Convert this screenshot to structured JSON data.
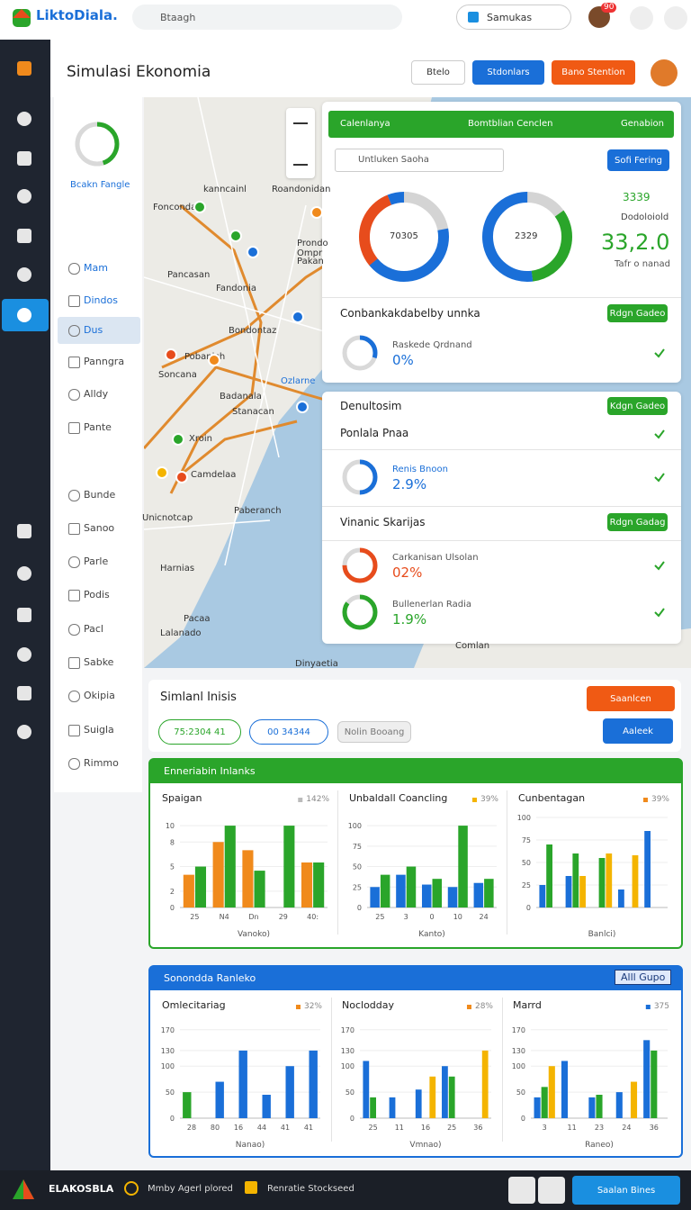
{
  "top_bar": {
    "brand": "LiktoDiala.",
    "search": "Btaagh",
    "tab": "Samukas",
    "badge": "90"
  },
  "header": {
    "title": "Simulasi Ekonomia",
    "buttons": [
      "Btelo",
      "Stdonlars",
      "Bano Stention"
    ]
  },
  "side_menu": {
    "brand": "Bcakn Fangle",
    "items": [
      "Mam",
      "Dindos",
      "Dus",
      "Panngra",
      "Alldy",
      "Pante",
      "Bunde",
      "Sanoo",
      "Parle",
      "Podis",
      "Pacl",
      "Sabke",
      "Okipia",
      "Suigla",
      "Rimmo"
    ]
  },
  "map": {
    "labels": [
      "kanncainl",
      "Roandonidan",
      "Foncondan",
      "Prondo",
      "Ompr",
      "Pakan",
      "Pancasan",
      "Fandonia",
      "Bondontaz",
      "Pobanich",
      "Soncana",
      "Badanala",
      "Stanacan",
      "Ozlarne",
      "Xroin",
      "Camdelaa",
      "Unicnotcap",
      "Paberanch",
      "Harnias",
      "Pacaa",
      "Lalanado",
      "Dinyaetia",
      "Comlan"
    ]
  },
  "panel": {
    "tabs": [
      "Calenlanya",
      "Bomtblian Cenclen",
      "Genabion"
    ],
    "search": "Untluken Saoha",
    "button": "Sofi Fering",
    "donut_labels": [
      "70305",
      "2329"
    ],
    "stats": {
      "small": "3339",
      "caption": "Dodoloiold",
      "big": "33,2.0",
      "note": "Tafr o nanad"
    },
    "sections": [
      {
        "title": "Conbankakdabelby unnka",
        "button": "Rdgn Gadeo",
        "items": [
          {
            "label": "Raskede Qrdnand",
            "value": "0%"
          }
        ]
      },
      {
        "title": "Denultosim",
        "button": "Kdgn Gadeo",
        "subtitle": "Ponlala Pnaa",
        "items": [
          {
            "label": "Renis Bnoon",
            "value": "2.9%"
          }
        ]
      },
      {
        "title": "Vinanic Skarijas",
        "button": "Rdgn Gadag",
        "items": [
          {
            "label": "Carkanisan Ulsolan",
            "value": "02%"
          },
          {
            "label": "Bullenerlan Radia",
            "value": "1.9%"
          }
        ]
      }
    ]
  },
  "simulation": {
    "title": "Simlanl Inisis",
    "button": "Saanlcen",
    "chips": [
      "75:2304 41",
      "00 34344",
      "Nolin Booang"
    ],
    "action": "Aaleek"
  },
  "chart_groups": [
    {
      "title": "Enneriabin Inlanks"
    },
    {
      "title": "Sonondda Ranleko",
      "badge": "Alll Gupo"
    }
  ],
  "chart_data": [
    {
      "type": "bar",
      "title": "Spaigan",
      "legend": "142%",
      "legend_color": "#bbbbbb",
      "categories": [
        "25",
        "N4",
        "Dn",
        "29",
        "40:"
      ],
      "series": [
        {
          "color": "#f08a1c",
          "values": [
            4,
            8,
            7,
            null,
            5.5
          ]
        },
        {
          "color": "#2aa52a",
          "values": [
            5,
            10,
            4.5,
            10,
            5.5
          ]
        }
      ],
      "ylim": [
        0,
        11
      ],
      "yticks": [
        0,
        2,
        5,
        8,
        10
      ],
      "x_label": "Vanoko)"
    },
    {
      "type": "bar",
      "title": "Unbaldall Coancling",
      "legend": "39%",
      "legend_color": "#f4b400",
      "categories": [
        "25",
        "3",
        "0",
        "10",
        "24"
      ],
      "series": [
        {
          "color": "#1a6fd8",
          "values": [
            25,
            40,
            28,
            25,
            30
          ]
        },
        {
          "color": "#2aa52a",
          "values": [
            40,
            50,
            35,
            100,
            35
          ]
        }
      ],
      "ylim": [
        0,
        110
      ],
      "yticks": [
        0,
        25,
        50,
        75,
        100
      ],
      "x_label": "Kanto)"
    },
    {
      "type": "bar",
      "title": "Cunbentagan",
      "legend": "39%",
      "legend_color": "#f08a1c",
      "categories": [
        null,
        null,
        null,
        null,
        null
      ],
      "series": [
        {
          "color": "#1a6fd8",
          "values": [
            25,
            35,
            null,
            20,
            85
          ]
        },
        {
          "color": "#2aa52a",
          "values": [
            70,
            60,
            55,
            null,
            null
          ]
        },
        {
          "color": "#f4b400",
          "values": [
            null,
            35,
            60,
            58,
            null
          ]
        }
      ],
      "ylim": [
        0,
        100
      ],
      "yticks": [
        0,
        25,
        50,
        75,
        100
      ],
      "x_label": "Banlci)"
    },
    {
      "type": "bar",
      "title": "Omlecitariag",
      "legend": "32%",
      "legend_color": "#f08a1c",
      "categories": [
        "28",
        "80",
        "16",
        "44",
        "41",
        "41"
      ],
      "series": [
        {
          "color": "#2aa52a",
          "values": [
            50,
            null,
            null,
            null,
            null,
            null
          ]
        },
        {
          "color": "#1a6fd8",
          "values": [
            null,
            70,
            130,
            45,
            100,
            130
          ]
        }
      ],
      "ylim": [
        0,
        180
      ],
      "yticks": [
        0,
        50,
        100,
        130,
        170
      ],
      "x_label": "Nanao)"
    },
    {
      "type": "bar",
      "title": "Noclodday",
      "legend": "28%",
      "legend_color": "#f08a1c",
      "categories": [
        "25",
        "11",
        "16",
        "25",
        "36"
      ],
      "series": [
        {
          "color": "#1a6fd8",
          "values": [
            110,
            40,
            55,
            100,
            null
          ]
        },
        {
          "color": "#2aa52a",
          "values": [
            40,
            null,
            null,
            80,
            null
          ]
        },
        {
          "color": "#f4b400",
          "values": [
            null,
            null,
            80,
            null,
            130
          ]
        }
      ],
      "ylim": [
        0,
        180
      ],
      "yticks": [
        0,
        50,
        100,
        130,
        170
      ],
      "x_label": "Vmnao)"
    },
    {
      "type": "bar",
      "title": "Marrd",
      "legend": "375",
      "legend_color": "#1a6fd8",
      "categories": [
        "3",
        "11",
        "23",
        "24",
        "36"
      ],
      "series": [
        {
          "color": "#1a6fd8",
          "values": [
            40,
            110,
            40,
            50,
            150
          ]
        },
        {
          "color": "#2aa52a",
          "values": [
            60,
            null,
            45,
            null,
            130
          ]
        },
        {
          "color": "#f4b400",
          "values": [
            100,
            null,
            null,
            70,
            null
          ]
        }
      ],
      "ylim": [
        0,
        180
      ],
      "yticks": [
        0,
        50,
        100,
        130,
        170
      ],
      "x_label": "Raneo)"
    }
  ],
  "footer": {
    "brand": "ELAKOSBLA",
    "links": [
      "Mmby Agerl plored",
      "Renratie Stockseed"
    ],
    "button": "Saalan Bines"
  }
}
